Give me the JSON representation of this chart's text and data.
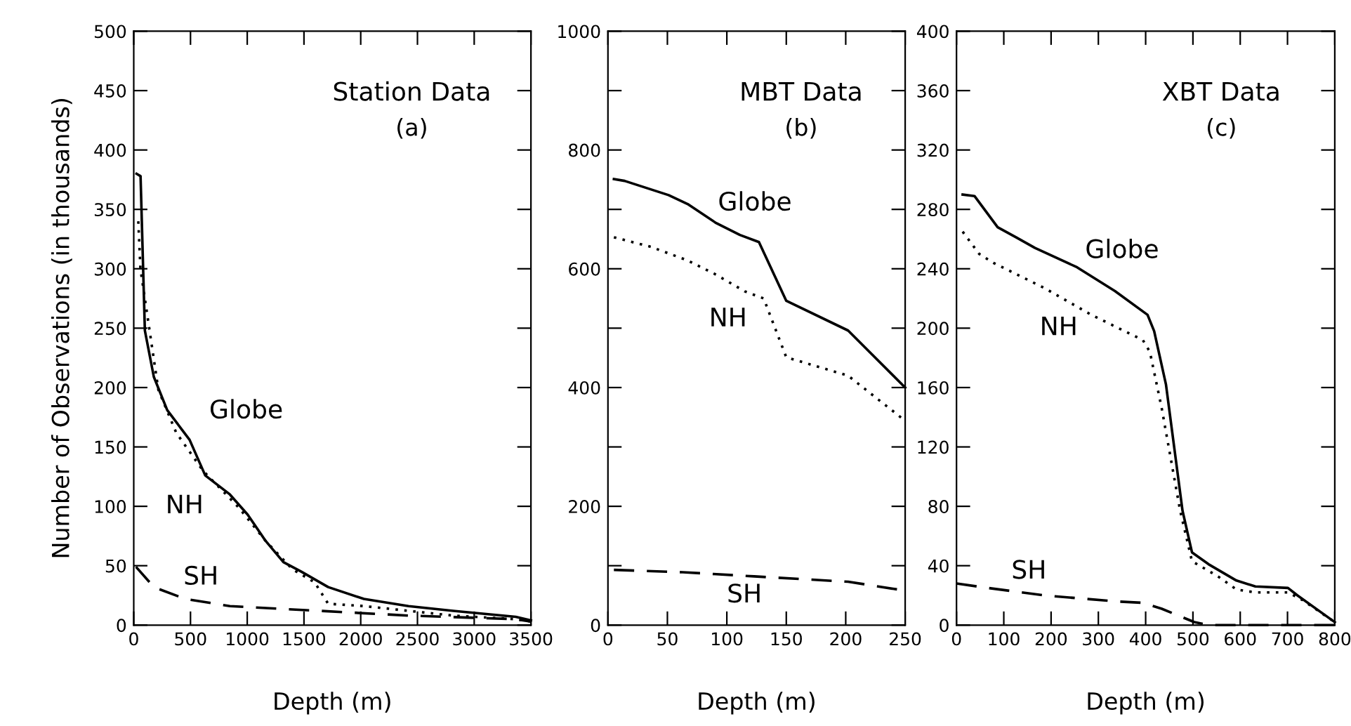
{
  "chart_data": [
    {
      "type": "line",
      "title": "Station Data",
      "subtitle": "(a)",
      "xlabel": "Depth (m)",
      "ylabel": "Number of Observations (in thousands)",
      "xlim": [
        0,
        3500
      ],
      "ylim": [
        0,
        500
      ],
      "xticks": [
        0,
        500,
        1000,
        1500,
        2000,
        2500,
        3000,
        3500
      ],
      "yticks": [
        0,
        50,
        100,
        150,
        200,
        250,
        300,
        350,
        400,
        450,
        500
      ],
      "grid": false,
      "legend": false,
      "series": [
        {
          "name": "Globe",
          "color": "#000000",
          "line_style": "solid",
          "x": [
            25,
            60,
            98,
            177,
            295,
            492,
            630,
            847,
            1004,
            1161,
            1319,
            1476,
            1713,
            2028,
            2421,
            2815,
            3366,
            3500
          ],
          "values": [
            380,
            378,
            248,
            209,
            181,
            156,
            126,
            110,
            93,
            71,
            53,
            45,
            32,
            22,
            16,
            12,
            7,
            4
          ]
        },
        {
          "name": "NH",
          "color": "#000000",
          "line_style": "dotted",
          "x": [
            40,
            59,
            138,
            217,
            374,
            610,
            925,
            1161,
            1398,
            1594,
            1713,
            2028,
            2421,
            2815,
            3366,
            3500
          ],
          "values": [
            340,
            300,
            249,
            198,
            162,
            130,
            99,
            71,
            47,
            36,
            18,
            16,
            12,
            8,
            5,
            3
          ]
        },
        {
          "name": "SH",
          "color": "#000000",
          "line_style": "dashed",
          "x": [
            20,
            177,
            453,
            847,
            1634,
            2421,
            3366,
            3500
          ],
          "values": [
            49,
            32,
            22,
            16,
            12,
            8,
            5,
            3
          ]
        }
      ]
    },
    {
      "type": "line",
      "title": "MBT Data",
      "subtitle": "(b)",
      "xlabel": "Depth (m)",
      "xlim": [
        0,
        250
      ],
      "ylim": [
        0,
        1000
      ],
      "xticks": [
        0,
        50,
        100,
        150,
        200,
        250
      ],
      "yticks": [
        0,
        {
          "value": 100,
          "label": null
        },
        200,
        {
          "value": 300,
          "label": null
        },
        400,
        {
          "value": 500,
          "label": null
        },
        600,
        {
          "value": 700,
          "label": null
        },
        800,
        {
          "value": 900,
          "label": null
        },
        1000
      ],
      "grid": false,
      "legend": false,
      "series": [
        {
          "name": "Globe",
          "color": "#000000",
          "line_style": "solid",
          "x": [
            5,
            14,
            51,
            67,
            91,
            111,
            127,
            150,
            202,
            250
          ],
          "values": [
            751,
            748,
            724,
            709,
            677,
            657,
            645,
            546,
            496,
            400
          ]
        },
        {
          "name": "NH",
          "color": "#000000",
          "line_style": "dotted",
          "x": [
            5,
            36,
            67,
            91,
            115,
            131,
            140,
            150,
            202,
            250
          ],
          "values": [
            653,
            637,
            614,
            590,
            562,
            550,
            503,
            451,
            420,
            344
          ]
        },
        {
          "name": "SH",
          "color": "#000000",
          "line_style": "dashed",
          "x": [
            5,
            63,
            123,
            202,
            250
          ],
          "values": [
            93,
            89,
            82,
            73,
            58
          ]
        }
      ]
    },
    {
      "type": "line",
      "title": "XBT Data",
      "subtitle": "(c)",
      "xlabel": "Depth (m)",
      "xlim": [
        0,
        800
      ],
      "ylim": [
        0,
        400
      ],
      "xticks": [
        0,
        100,
        200,
        300,
        400,
        500,
        600,
        700,
        800
      ],
      "yticks": [
        0,
        40,
        80,
        120,
        160,
        200,
        240,
        280,
        320,
        360,
        400
      ],
      "grid": false,
      "legend": false,
      "series": [
        {
          "name": "Globe",
          "color": "#000000",
          "line_style": "solid",
          "x": [
            13,
            38,
            87,
            127,
            166,
            255,
            335,
            404,
            418,
            443,
            478,
            498,
            533,
            592,
            632,
            701,
            721,
            800
          ],
          "values": [
            290,
            289,
            268,
            261,
            254,
            241,
            225,
            209,
            198,
            162,
            77,
            49,
            41,
            30,
            26,
            25,
            20,
            2
          ]
        },
        {
          "name": "NH",
          "color": "#000000",
          "line_style": "dotted",
          "x": [
            13,
            48,
            78,
            186,
            285,
            394,
            409,
            434,
            473,
            498,
            552,
            592,
            632,
            701,
            731,
            800
          ],
          "values": [
            265,
            250,
            244,
            227,
            209,
            192,
            184,
            146,
            77,
            43,
            33,
            24,
            22,
            22,
            17,
            2
          ]
        },
        {
          "name": "SH",
          "color": "#000000",
          "line_style": "dashed",
          "x": [
            0,
            67,
            186,
            335,
            394,
            434,
            503,
            533,
            701,
            800
          ],
          "values": [
            28,
            25,
            20,
            16,
            15,
            11,
            2,
            0,
            0,
            0
          ]
        }
      ]
    }
  ]
}
